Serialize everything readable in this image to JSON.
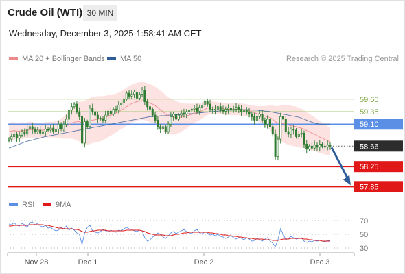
{
  "header": {
    "title": "Crude Oil (WTI)",
    "timeframe": "30 MIN",
    "datetime": "Wednesday, December 3, 2025 1:58:41 AM CET"
  },
  "legend": {
    "ma20": "MA 20 + Bollinger Bands",
    "ma50": "MA 50",
    "rsi": "RSI",
    "rsi_ma": "9MA"
  },
  "research": "Research © 2025 Trading Central",
  "colors": {
    "ma20": "#f08a8a",
    "ma50": "#2f5d9a",
    "bollinger_fill": "#fde2e2",
    "candle": "#2e7d32",
    "resistance": "#a8cc74",
    "pivot": "#5b8fe6",
    "support": "#e01818",
    "current": "#2d2d2d",
    "arrow": "#2f5d9a"
  },
  "chart_data": [
    {
      "type": "candlestick",
      "ylim": [
        57.72,
        59.95
      ],
      "x_ticks": [
        "Nov 28",
        "Dec 1",
        "Dec 2",
        "Dec 3"
      ],
      "levels": [
        {
          "label": "59.60",
          "value": 59.6,
          "kind": "resistance"
        },
        {
          "label": "59.35",
          "value": 59.35,
          "kind": "resistance"
        },
        {
          "label": "59.10",
          "value": 59.1,
          "kind": "pivot"
        },
        {
          "label": "58.66",
          "value": 58.66,
          "kind": "current"
        },
        {
          "label": "58.25",
          "value": 58.25,
          "kind": "support"
        },
        {
          "label": "57.85",
          "value": 57.85,
          "kind": "support"
        }
      ],
      "close": [
        58.8,
        58.85,
        58.9,
        58.82,
        58.88,
        58.95,
        58.9,
        59.0,
        59.05,
        59.0,
        58.95,
        58.98,
        58.92,
        58.95,
        59.0,
        58.98,
        59.02,
        58.96,
        59.0,
        59.1,
        59.0,
        59.1,
        59.2,
        59.38,
        59.45,
        59.5,
        59.35,
        59.25,
        58.72,
        59.15,
        59.05,
        59.42,
        59.35,
        59.28,
        59.22,
        59.2,
        59.18,
        59.28,
        59.36,
        59.3,
        59.4,
        59.38,
        59.48,
        59.52,
        59.6,
        59.72,
        59.66,
        59.7,
        59.74,
        59.62,
        59.7,
        59.78,
        59.55,
        59.45,
        59.4,
        59.28,
        59.18,
        59.05,
        59.0,
        59.05,
        58.95,
        59.1,
        59.25,
        59.3,
        59.2,
        59.28,
        59.32,
        59.3,
        59.35,
        59.38,
        59.4,
        59.42,
        59.36,
        59.44,
        59.48,
        59.55,
        59.5,
        59.4,
        59.38,
        59.4,
        59.45,
        59.38,
        59.36,
        59.4,
        59.42,
        59.38,
        59.4,
        59.44,
        59.4,
        59.35,
        59.38,
        59.34,
        59.3,
        59.25,
        59.18,
        59.25,
        59.3,
        59.18,
        59.1,
        59.2,
        59.05,
        58.9,
        58.45,
        58.8,
        59.25,
        59.2,
        58.95,
        58.9,
        59.0,
        58.98,
        58.85,
        58.9,
        58.92,
        58.7,
        58.6,
        58.66,
        58.62,
        58.68,
        58.64,
        58.7,
        58.66,
        58.64,
        58.68,
        58.66
      ],
      "ma20": [
        58.95,
        58.96,
        58.97,
        58.96,
        58.96,
        58.97,
        58.97,
        58.98,
        58.99,
        58.99,
        58.98,
        58.98,
        58.98,
        58.98,
        58.99,
        58.99,
        58.99,
        58.99,
        59.0,
        59.0,
        59.01,
        59.03,
        59.06,
        59.09,
        59.12,
        59.14,
        59.15,
        59.15,
        59.13,
        59.13,
        59.14,
        59.16,
        59.18,
        59.19,
        59.2,
        59.21,
        59.22,
        59.24,
        59.26,
        59.28,
        59.3,
        59.32,
        59.35,
        59.38,
        59.41,
        59.45,
        59.48,
        59.51,
        59.53,
        59.55,
        59.56,
        59.57,
        59.56,
        59.54,
        59.52,
        59.5,
        59.47,
        59.43,
        59.39,
        59.35,
        59.3,
        59.27,
        59.25,
        59.24,
        59.23,
        59.23,
        59.24,
        59.25,
        59.26,
        59.28,
        59.3,
        59.32,
        59.33,
        59.35,
        59.37,
        59.4,
        59.42,
        59.43,
        59.43,
        59.43,
        59.42,
        59.42,
        59.41,
        59.4,
        59.4,
        59.4,
        59.4,
        59.4,
        59.4,
        59.39,
        59.39,
        59.38,
        59.37,
        59.35,
        59.33,
        59.31,
        59.3,
        59.28,
        59.26,
        59.25,
        59.23,
        59.2,
        59.15,
        59.12,
        59.12,
        59.11,
        59.1,
        59.08,
        59.07,
        59.06,
        59.05,
        59.03,
        59.02,
        59.0,
        58.97,
        58.95,
        58.92,
        58.9,
        58.87,
        58.84,
        58.82,
        58.79,
        58.77,
        58.75
      ],
      "ma50": [
        58.62,
        58.64,
        58.66,
        58.68,
        58.7,
        58.72,
        58.74,
        58.76,
        58.77,
        58.78,
        58.8,
        58.81,
        58.82,
        58.84,
        58.85,
        58.86,
        58.87,
        58.88,
        58.89,
        58.9,
        58.91,
        58.92,
        58.93,
        58.94,
        58.95,
        58.96,
        58.97,
        58.98,
        58.99,
        59.0,
        59.01,
        59.02,
        59.03,
        59.04,
        59.05,
        59.06,
        59.07,
        59.08,
        59.09,
        59.1,
        59.11,
        59.12,
        59.13,
        59.14,
        59.15,
        59.16,
        59.17,
        59.18,
        59.19,
        59.2,
        59.21,
        59.22,
        59.23,
        59.24,
        59.25,
        59.25,
        59.26,
        59.26,
        59.27,
        59.27,
        59.27,
        59.28,
        59.28,
        59.28,
        59.29,
        59.29,
        59.29,
        59.3,
        59.3,
        59.31,
        59.31,
        59.32,
        59.32,
        59.33,
        59.33,
        59.34,
        59.34,
        59.35,
        59.35,
        59.36,
        59.36,
        59.37,
        59.37,
        59.37,
        59.38,
        59.38,
        59.38,
        59.39,
        59.39,
        59.39,
        59.39,
        59.39,
        59.39,
        59.38,
        59.38,
        59.38,
        59.37,
        59.37,
        59.36,
        59.36,
        59.35,
        59.34,
        59.33,
        59.32,
        59.31,
        59.3,
        59.29,
        59.28,
        59.27,
        59.26,
        59.25,
        59.24,
        59.22,
        59.2,
        59.18,
        59.16,
        59.14,
        59.12,
        59.11,
        59.1,
        59.1,
        59.1,
        59.1,
        59.1
      ],
      "bollinger_halfwidth": [
        0.18,
        0.18,
        0.17,
        0.17,
        0.17,
        0.17,
        0.16,
        0.16,
        0.16,
        0.16,
        0.15,
        0.15,
        0.15,
        0.15,
        0.15,
        0.15,
        0.16,
        0.16,
        0.17,
        0.18,
        0.2,
        0.22,
        0.25,
        0.28,
        0.31,
        0.34,
        0.37,
        0.4,
        0.42,
        0.44,
        0.45,
        0.46,
        0.46,
        0.46,
        0.46,
        0.45,
        0.44,
        0.43,
        0.42,
        0.41,
        0.4,
        0.39,
        0.38,
        0.38,
        0.38,
        0.38,
        0.38,
        0.38,
        0.38,
        0.38,
        0.38,
        0.38,
        0.38,
        0.38,
        0.38,
        0.38,
        0.38,
        0.38,
        0.38,
        0.38,
        0.38,
        0.37,
        0.36,
        0.35,
        0.33,
        0.31,
        0.29,
        0.27,
        0.25,
        0.23,
        0.21,
        0.19,
        0.18,
        0.17,
        0.16,
        0.15,
        0.14,
        0.13,
        0.12,
        0.12,
        0.12,
        0.12,
        0.12,
        0.12,
        0.12,
        0.12,
        0.12,
        0.12,
        0.12,
        0.12,
        0.12,
        0.12,
        0.12,
        0.13,
        0.14,
        0.15,
        0.16,
        0.18,
        0.2,
        0.22,
        0.25,
        0.28,
        0.31,
        0.34,
        0.36,
        0.38,
        0.39,
        0.4,
        0.4,
        0.4,
        0.4,
        0.4,
        0.39,
        0.38,
        0.37,
        0.36,
        0.35,
        0.34,
        0.33,
        0.32,
        0.31,
        0.3,
        0.29,
        0.28
      ]
    },
    {
      "type": "line",
      "ylim": [
        22,
        82
      ],
      "y_ticks": [
        "70",
        "50",
        "30"
      ],
      "series": [
        {
          "name": "RSI",
          "values": [
            65,
            64,
            67,
            63,
            62,
            66,
            64,
            60,
            67,
            68,
            64,
            66,
            62,
            61,
            63,
            59,
            60,
            57,
            55,
            56,
            60,
            58,
            62,
            56,
            59,
            56,
            52,
            50,
            35,
            52,
            60,
            63,
            55,
            53,
            52,
            54,
            57,
            55,
            53,
            56,
            54,
            53,
            56,
            55,
            58,
            60,
            58,
            57,
            55,
            54,
            56,
            55,
            45,
            40,
            42,
            46,
            49,
            52,
            50,
            46,
            44,
            48,
            52,
            54,
            51,
            53,
            55,
            57,
            54,
            52,
            51,
            55,
            57,
            52,
            50,
            54,
            52,
            49,
            50,
            48,
            50,
            47,
            46,
            44,
            46,
            48,
            45,
            43,
            46,
            44,
            42,
            45,
            43,
            40,
            41,
            44,
            42,
            40,
            43,
            45,
            40,
            37,
            32,
            42,
            58,
            50,
            42,
            44,
            47,
            45,
            43,
            44,
            45,
            40,
            38,
            40,
            39,
            41,
            40,
            41,
            40,
            39,
            41,
            41
          ]
        },
        {
          "name": "9MA",
          "values": [
            62,
            62,
            63,
            63,
            63,
            63,
            63,
            63,
            64,
            64,
            64,
            64,
            64,
            64,
            63,
            63,
            62,
            61,
            60,
            59,
            59,
            58,
            58,
            58,
            58,
            57,
            57,
            56,
            54,
            53,
            53,
            54,
            55,
            55,
            56,
            56,
            56,
            56,
            55,
            55,
            55,
            55,
            55,
            55,
            55,
            56,
            56,
            56,
            56,
            56,
            56,
            55,
            54,
            52,
            51,
            50,
            49,
            49,
            49,
            49,
            48,
            48,
            48,
            49,
            50,
            50,
            51,
            52,
            52,
            53,
            53,
            53,
            53,
            53,
            53,
            53,
            53,
            52,
            52,
            51,
            51,
            50,
            49,
            49,
            48,
            48,
            47,
            47,
            46,
            46,
            45,
            45,
            44,
            44,
            43,
            43,
            43,
            43,
            42,
            42,
            42,
            41,
            41,
            41,
            42,
            43,
            43,
            43,
            44,
            44,
            44,
            44,
            44,
            43,
            43,
            42,
            42,
            41,
            41,
            41,
            40,
            40,
            40,
            40
          ]
        }
      ]
    }
  ]
}
